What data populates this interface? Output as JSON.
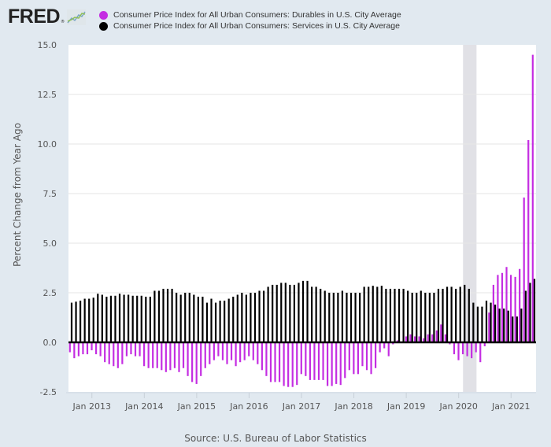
{
  "header": {
    "logo_text": "FRED",
    "logo_icon": "chart-line-icon"
  },
  "legend": [
    {
      "label": "Consumer Price Index for All Urban Consumers: Durables in U.S. City Average",
      "color": "#c42de2"
    },
    {
      "label": "Consumer Price Index for All Urban Consumers: Services in U.S. City Average",
      "color": "#000000"
    }
  ],
  "source": "Source: U.S. Bureau of Labor Statistics",
  "chart_data": {
    "type": "bar",
    "title": "",
    "xlabel": "",
    "ylabel": "Percent Change from Year Ago",
    "ylim": [
      -2.5,
      15.0
    ],
    "yticks": [
      "-2.5",
      "0.0",
      "2.5",
      "5.0",
      "7.5",
      "10.0",
      "12.5",
      "15.0"
    ],
    "ytick_values": [
      -2.5,
      0,
      2.5,
      5,
      7.5,
      10,
      12.5,
      15
    ],
    "xticks": [
      "Jan 2013",
      "Jan 2014",
      "Jan 2015",
      "Jan 2016",
      "Jan 2017",
      "Jan 2018",
      "Jan 2019",
      "Jan 2020",
      "Jan 2021"
    ],
    "x_start": "2012-08",
    "x_end": "2021-06",
    "frequency": "monthly",
    "grid": true,
    "legend_position": "top",
    "recession_shading": {
      "start": "2020-02",
      "end": "2020-04",
      "color": "#e1e1e6"
    },
    "series": [
      {
        "name": "Consumer Price Index for All Urban Consumers: Durables in U.S. City Average",
        "color": "#c42de2",
        "values": [
          -0.5,
          -0.8,
          -0.7,
          -0.6,
          -0.6,
          -0.4,
          -0.6,
          -0.7,
          -1.0,
          -1.1,
          -1.2,
          -1.3,
          -1.1,
          -0.7,
          -0.6,
          -0.7,
          -0.7,
          -1.2,
          -1.3,
          -1.3,
          -1.3,
          -1.4,
          -1.5,
          -1.4,
          -1.3,
          -1.5,
          -1.3,
          -1.7,
          -2.0,
          -2.1,
          -1.7,
          -1.3,
          -1.1,
          -0.9,
          -0.7,
          -0.9,
          -1.1,
          -0.9,
          -1.2,
          -1.0,
          -0.9,
          -0.7,
          -0.9,
          -1.1,
          -1.4,
          -1.7,
          -2.0,
          -2.0,
          -2.0,
          -2.2,
          -2.25,
          -2.25,
          -2.15,
          -1.6,
          -1.7,
          -1.9,
          -1.9,
          -1.9,
          -1.9,
          -2.2,
          -2.2,
          -2.1,
          -2.15,
          -1.8,
          -1.4,
          -1.6,
          -1.6,
          -1.2,
          -1.4,
          -1.6,
          -1.3,
          -0.5,
          -0.3,
          -0.7,
          -0.1,
          0.1,
          0.0,
          0.3,
          0.4,
          0.3,
          0.3,
          0.2,
          0.4,
          0.4,
          0.6,
          0.9,
          0.4,
          -0.1,
          -0.6,
          -0.9,
          -0.6,
          -0.7,
          -0.8,
          -0.5,
          -1.0,
          -0.2,
          1.5,
          2.9,
          3.4,
          3.5,
          3.8,
          3.4,
          3.3,
          3.7,
          7.3,
          10.2,
          14.5
        ]
      },
      {
        "name": "Consumer Price Index for All Urban Consumers: Services in U.S. City Average",
        "color": "#000000",
        "values": [
          2.0,
          2.05,
          2.1,
          2.2,
          2.2,
          2.25,
          2.45,
          2.4,
          2.3,
          2.35,
          2.35,
          2.45,
          2.4,
          2.4,
          2.35,
          2.35,
          2.35,
          2.3,
          2.3,
          2.6,
          2.6,
          2.7,
          2.7,
          2.7,
          2.5,
          2.4,
          2.5,
          2.5,
          2.4,
          2.3,
          2.3,
          2.0,
          2.2,
          2.0,
          2.1,
          2.1,
          2.2,
          2.3,
          2.4,
          2.5,
          2.4,
          2.5,
          2.5,
          2.6,
          2.6,
          2.8,
          2.9,
          2.9,
          3.0,
          3.0,
          2.9,
          2.9,
          3.0,
          3.1,
          3.1,
          2.8,
          2.8,
          2.7,
          2.6,
          2.5,
          2.5,
          2.5,
          2.6,
          2.5,
          2.5,
          2.5,
          2.5,
          2.8,
          2.8,
          2.85,
          2.8,
          2.85,
          2.7,
          2.7,
          2.7,
          2.7,
          2.7,
          2.6,
          2.5,
          2.5,
          2.6,
          2.5,
          2.5,
          2.5,
          2.7,
          2.7,
          2.8,
          2.8,
          2.7,
          2.8,
          2.9,
          2.7,
          2.0,
          1.8,
          1.8,
          2.1,
          2.0,
          1.9,
          1.7,
          1.7,
          1.6,
          1.3,
          1.3,
          1.7,
          2.6,
          3.0,
          3.2
        ]
      }
    ]
  }
}
